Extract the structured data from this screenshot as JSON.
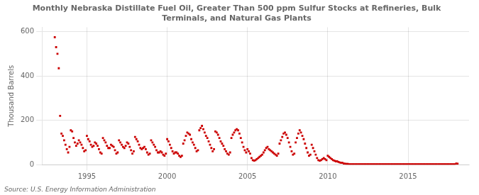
{
  "chart_data": {
    "type": "scatter",
    "title": "Monthly Nebraska Distillate Fuel Oil, Greater Than 500 ppm Sulfur Stocks at Refineries, Bulk\nTerminals, and Natural Gas Plants",
    "ylabel": "Thousand Barrels",
    "source": "Source: U.S. Energy Information Administration",
    "color": "#cc0000",
    "marker": "square",
    "grid": true,
    "xlim": [
      1992.2,
      2018.8
    ],
    "ylim": [
      0,
      620
    ],
    "xticks": [
      1995,
      2000,
      2005,
      2010,
      2015
    ],
    "yticks": [
      0,
      200,
      400,
      600
    ],
    "x": [
      1993.0,
      1993.083,
      1993.167,
      1993.25,
      1993.333,
      1993.417,
      1993.5,
      1993.583,
      1993.667,
      1993.75,
      1993.833,
      1993.917,
      1994.0,
      1994.083,
      1994.167,
      1994.25,
      1994.333,
      1994.417,
      1994.5,
      1994.583,
      1994.667,
      1994.75,
      1994.833,
      1994.917,
      1995.0,
      1995.083,
      1995.167,
      1995.25,
      1995.333,
      1995.417,
      1995.5,
      1995.583,
      1995.667,
      1995.75,
      1995.833,
      1995.917,
      1996.0,
      1996.083,
      1996.167,
      1996.25,
      1996.333,
      1996.417,
      1996.5,
      1996.583,
      1996.667,
      1996.75,
      1996.833,
      1996.917,
      1997.0,
      1997.083,
      1997.167,
      1997.25,
      1997.333,
      1997.417,
      1997.5,
      1997.583,
      1997.667,
      1997.75,
      1997.833,
      1997.917,
      1998.0,
      1998.083,
      1998.167,
      1998.25,
      1998.333,
      1998.417,
      1998.5,
      1998.583,
      1998.667,
      1998.75,
      1998.833,
      1998.917,
      1999.0,
      1999.083,
      1999.167,
      1999.25,
      1999.333,
      1999.417,
      1999.5,
      1999.583,
      1999.667,
      1999.75,
      1999.833,
      1999.917,
      2000.0,
      2000.083,
      2000.167,
      2000.25,
      2000.333,
      2000.417,
      2000.5,
      2000.583,
      2000.667,
      2000.75,
      2000.833,
      2000.917,
      2001.0,
      2001.083,
      2001.167,
      2001.25,
      2001.333,
      2001.417,
      2001.5,
      2001.583,
      2001.667,
      2001.75,
      2001.833,
      2001.917,
      2002.0,
      2002.083,
      2002.167,
      2002.25,
      2002.333,
      2002.417,
      2002.5,
      2002.583,
      2002.667,
      2002.75,
      2002.833,
      2002.917,
      2003.0,
      2003.083,
      2003.167,
      2003.25,
      2003.333,
      2003.417,
      2003.5,
      2003.583,
      2003.667,
      2003.75,
      2003.833,
      2003.917,
      2004.0,
      2004.083,
      2004.167,
      2004.25,
      2004.333,
      2004.417,
      2004.5,
      2004.583,
      2004.667,
      2004.75,
      2004.833,
      2004.917,
      2005.0,
      2005.083,
      2005.167,
      2005.25,
      2005.333,
      2005.417,
      2005.5,
      2005.583,
      2005.667,
      2005.75,
      2005.833,
      2005.917,
      2006.0,
      2006.083,
      2006.167,
      2006.25,
      2006.333,
      2006.417,
      2006.5,
      2006.583,
      2006.667,
      2006.75,
      2006.833,
      2006.917,
      2007.0,
      2007.083,
      2007.167,
      2007.25,
      2007.333,
      2007.417,
      2007.5,
      2007.583,
      2007.667,
      2007.75,
      2007.833,
      2007.917,
      2008.0,
      2008.083,
      2008.167,
      2008.25,
      2008.333,
      2008.417,
      2008.5,
      2008.583,
      2008.667,
      2008.75,
      2008.833,
      2008.917,
      2009.0,
      2009.083,
      2009.167,
      2009.25,
      2009.333,
      2009.417,
      2009.5,
      2009.583,
      2009.667,
      2009.75,
      2009.833,
      2009.917,
      2010.0,
      2010.083,
      2010.167,
      2010.25,
      2010.333,
      2010.417,
      2010.5,
      2010.583,
      2010.667,
      2010.75,
      2010.833,
      2010.917,
      2011.0,
      2011.083,
      2011.167,
      2011.25,
      2011.333,
      2011.417,
      2011.5,
      2011.583,
      2011.667,
      2011.75,
      2011.833,
      2011.917,
      2012.0,
      2012.083,
      2012.167,
      2012.25,
      2012.333,
      2012.417,
      2012.5,
      2012.583,
      2012.667,
      2012.75,
      2012.833,
      2012.917,
      2013.0,
      2013.083,
      2013.167,
      2013.25,
      2013.333,
      2013.417,
      2013.5,
      2013.583,
      2013.667,
      2013.75,
      2013.833,
      2013.917,
      2014.0,
      2014.083,
      2014.167,
      2014.25,
      2014.333,
      2014.417,
      2014.5,
      2014.583,
      2014.667,
      2014.75,
      2014.833,
      2014.917,
      2015.0,
      2015.083,
      2015.167,
      2015.25,
      2015.333,
      2015.417,
      2015.5,
      2015.583,
      2015.667,
      2015.75,
      2015.833,
      2015.917,
      2016.0,
      2016.083,
      2016.167,
      2016.25,
      2016.333,
      2016.417,
      2016.5,
      2016.583,
      2016.667,
      2016.75,
      2016.833,
      2016.917,
      2017.0,
      2017.083,
      2017.167,
      2017.25,
      2017.333,
      2017.417,
      2017.5,
      2017.583,
      2017.667,
      2017.75,
      2017.833,
      2017.917,
      2018.0,
      2018.083
    ],
    "values": [
      575,
      530,
      500,
      435,
      220,
      140,
      130,
      110,
      90,
      70,
      55,
      80,
      155,
      150,
      120,
      100,
      85,
      95,
      110,
      100,
      90,
      75,
      60,
      65,
      130,
      115,
      105,
      90,
      80,
      85,
      100,
      95,
      85,
      70,
      55,
      50,
      120,
      110,
      100,
      85,
      75,
      75,
      90,
      85,
      80,
      65,
      50,
      55,
      110,
      100,
      90,
      80,
      75,
      85,
      100,
      95,
      80,
      65,
      50,
      60,
      125,
      115,
      105,
      90,
      75,
      70,
      75,
      80,
      70,
      55,
      45,
      50,
      110,
      100,
      90,
      80,
      65,
      55,
      55,
      60,
      55,
      45,
      40,
      50,
      115,
      105,
      90,
      75,
      60,
      50,
      55,
      55,
      50,
      40,
      35,
      40,
      95,
      110,
      130,
      145,
      140,
      135,
      115,
      100,
      90,
      75,
      60,
      65,
      155,
      165,
      175,
      160,
      145,
      130,
      120,
      105,
      90,
      75,
      60,
      70,
      150,
      145,
      135,
      120,
      105,
      95,
      85,
      70,
      60,
      50,
      45,
      55,
      120,
      135,
      145,
      155,
      160,
      155,
      140,
      120,
      100,
      80,
      65,
      55,
      70,
      60,
      50,
      30,
      20,
      18,
      20,
      25,
      30,
      35,
      40,
      45,
      55,
      65,
      75,
      80,
      70,
      65,
      60,
      55,
      50,
      45,
      40,
      50,
      95,
      110,
      125,
      140,
      145,
      135,
      120,
      100,
      80,
      60,
      45,
      50,
      100,
      120,
      140,
      155,
      145,
      130,
      115,
      95,
      75,
      55,
      40,
      45,
      90,
      75,
      60,
      45,
      30,
      20,
      18,
      20,
      25,
      30,
      25,
      20,
      40,
      35,
      30,
      25,
      20,
      18,
      15,
      15,
      12,
      10,
      8,
      8,
      5,
      4,
      3,
      3,
      2,
      2,
      2,
      2,
      2,
      2,
      2,
      2,
      2,
      2,
      2,
      2,
      2,
      2,
      2,
      2,
      2,
      2,
      2,
      2,
      2,
      2,
      2,
      2,
      2,
      2,
      2,
      2,
      2,
      2,
      2,
      2,
      2,
      2,
      2,
      2,
      2,
      2,
      2,
      2,
      2,
      2,
      2,
      2,
      2,
      2,
      2,
      2,
      2,
      2,
      2,
      2,
      2,
      2,
      2,
      2,
      2,
      2,
      2,
      2,
      2,
      2,
      2,
      2,
      2,
      2,
      2,
      2,
      2,
      2,
      2,
      2,
      2,
      2,
      2,
      2,
      2,
      2,
      2,
      2,
      5,
      4
    ]
  }
}
